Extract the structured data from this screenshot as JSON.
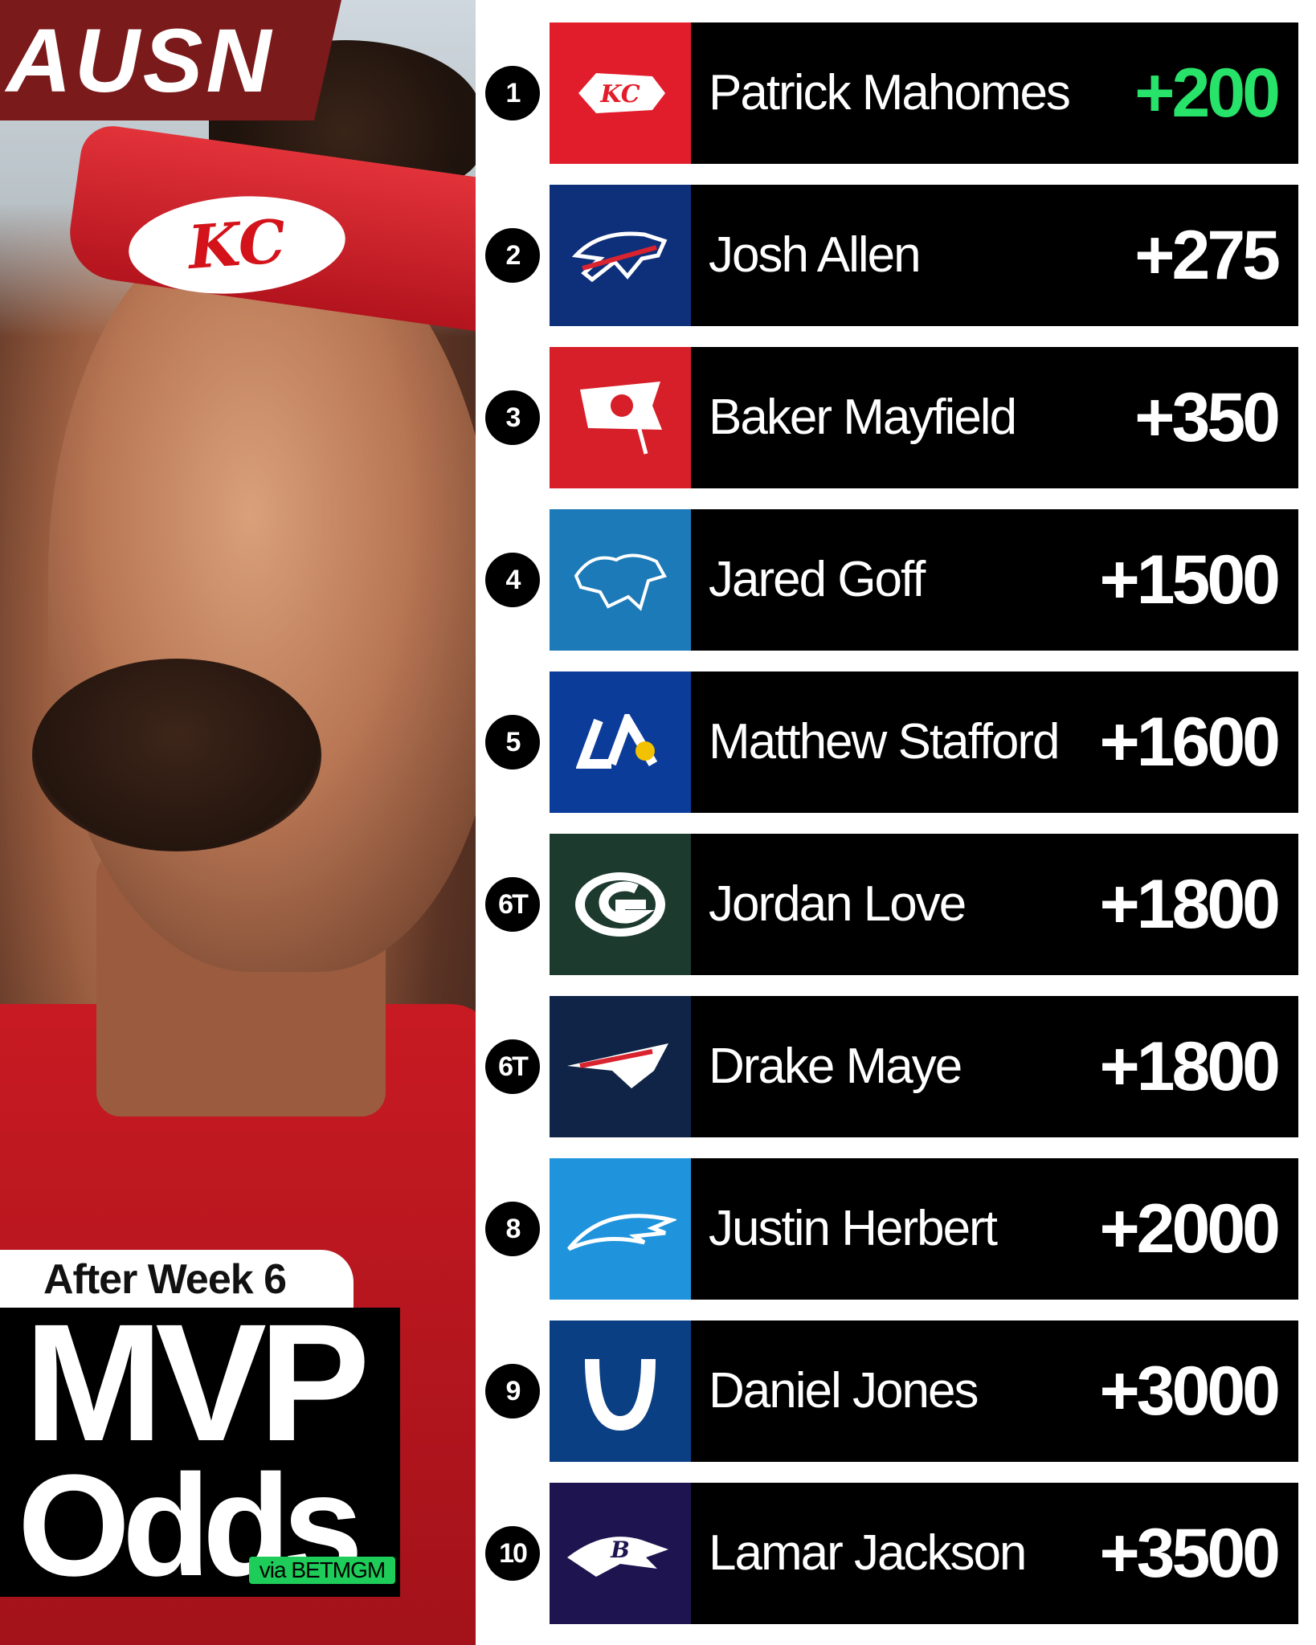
{
  "brand": "AUSN",
  "header": {
    "week": "After Week 6",
    "title_line1": "MVP",
    "title_line2": "Odds",
    "source": "via BETMGM"
  },
  "colors": {
    "leader_odds": "#27e36a",
    "bar": "#000000",
    "brand": "#7b1a1b"
  },
  "rankings": [
    {
      "rank": "1",
      "team_icon": "chiefs-logo-icon",
      "team_color": "#e21d2b",
      "player": "Patrick Mahomes",
      "odds": "+200",
      "leader": true
    },
    {
      "rank": "2",
      "team_icon": "bills-logo-icon",
      "team_color": "#0e2f7a",
      "player": "Josh Allen",
      "odds": "+275"
    },
    {
      "rank": "3",
      "team_icon": "buccaneers-logo-icon",
      "team_color": "#d71f29",
      "player": "Baker Mayfield",
      "odds": "+350"
    },
    {
      "rank": "4",
      "team_icon": "lions-logo-icon",
      "team_color": "#1d7ab8",
      "player": "Jared Goff",
      "odds": "+1500"
    },
    {
      "rank": "5",
      "team_icon": "rams-logo-icon",
      "team_color": "#0c3c9a",
      "player": "Matthew Stafford",
      "odds": "+1600"
    },
    {
      "rank": "6T",
      "team_icon": "packers-logo-icon",
      "team_color": "#1d3a2f",
      "player": "Jordan Love",
      "odds": "+1800"
    },
    {
      "rank": "6T",
      "team_icon": "patriots-logo-icon",
      "team_color": "#0f2447",
      "player": "Drake Maye",
      "odds": "+1800"
    },
    {
      "rank": "8",
      "team_icon": "chargers-logo-icon",
      "team_color": "#1f94dc",
      "player": "Justin Herbert",
      "odds": "+2000"
    },
    {
      "rank": "9",
      "team_icon": "colts-logo-icon",
      "team_color": "#0b3f83",
      "player": "Daniel Jones",
      "odds": "+3000"
    },
    {
      "rank": "10",
      "team_icon": "ravens-logo-icon",
      "team_color": "#1e1450",
      "player": "Lamar Jackson",
      "odds": "+3500"
    }
  ],
  "photo_logo": "KC"
}
